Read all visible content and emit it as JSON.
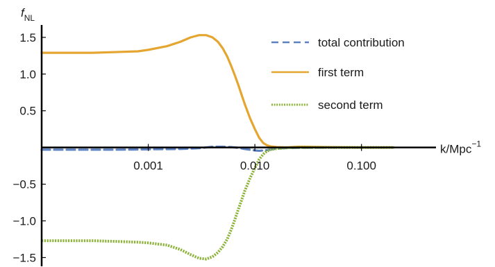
{
  "chart_data": {
    "type": "line",
    "title": "",
    "xlabel": "k/Mpc",
    "xlabel_exp": "−1",
    "ylabel": "f",
    "ylabel_sub": "NL",
    "x_scale": "log",
    "xlim": [
      0.0001,
      0.5
    ],
    "ylim": [
      -1.6,
      1.65
    ],
    "x_ticks": [
      {
        "value": 0.001,
        "label": "0.001"
      },
      {
        "value": 0.01,
        "label": "0.010"
      },
      {
        "value": 0.1,
        "label": "0.100"
      }
    ],
    "y_ticks": [
      {
        "value": 1.5,
        "label": "1.5"
      },
      {
        "value": 1.0,
        "label": "1.0"
      },
      {
        "value": 0.5,
        "label": "0.5"
      },
      {
        "value": -0.5,
        "label": "−0.5"
      },
      {
        "value": -1.0,
        "label": "−1.0"
      },
      {
        "value": -1.5,
        "label": "−1.5"
      }
    ],
    "grid": false,
    "legend_position": "top-right",
    "series": [
      {
        "name": "total contribution",
        "color": "#5b80c0",
        "style": "dashed",
        "x": [
          0.0001,
          0.0005,
          0.001,
          0.002,
          0.003,
          0.004,
          0.005,
          0.006,
          0.007,
          0.008,
          0.009,
          0.01,
          0.011,
          0.012,
          0.013,
          0.015,
          0.018,
          0.025,
          0.05,
          0.1,
          0.2
        ],
        "y": [
          -0.03,
          -0.03,
          -0.025,
          -0.02,
          -0.01,
          0.01,
          0.01,
          0.005,
          -0.005,
          -0.02,
          -0.03,
          -0.04,
          -0.045,
          -0.04,
          -0.035,
          -0.02,
          -0.01,
          -0.005,
          0.0,
          0.0,
          0.0
        ]
      },
      {
        "name": "first term",
        "color": "#e5a631",
        "style": "solid",
        "x": [
          0.0001,
          0.0003,
          0.0005,
          0.0008,
          0.001,
          0.0015,
          0.002,
          0.0025,
          0.003,
          0.0035,
          0.004,
          0.0045,
          0.005,
          0.0055,
          0.006,
          0.0065,
          0.007,
          0.0075,
          0.008,
          0.009,
          0.01,
          0.011,
          0.012,
          0.013,
          0.014,
          0.016,
          0.018,
          0.02,
          0.025,
          0.03,
          0.05,
          0.1,
          0.2
        ],
        "y": [
          1.29,
          1.29,
          1.3,
          1.31,
          1.33,
          1.38,
          1.44,
          1.5,
          1.53,
          1.53,
          1.5,
          1.44,
          1.35,
          1.24,
          1.11,
          0.98,
          0.85,
          0.72,
          0.6,
          0.4,
          0.25,
          0.13,
          0.06,
          0.03,
          0.015,
          0.005,
          0.003,
          0.002,
          0.01,
          0.01,
          0.005,
          0.0,
          0.0
        ]
      },
      {
        "name": "second term",
        "color": "#8db33a",
        "style": "dotted",
        "x": [
          0.0001,
          0.0003,
          0.0005,
          0.0008,
          0.001,
          0.0015,
          0.002,
          0.0025,
          0.003,
          0.0035,
          0.004,
          0.0045,
          0.005,
          0.0055,
          0.006,
          0.0065,
          0.007,
          0.0075,
          0.008,
          0.009,
          0.01,
          0.011,
          0.012,
          0.013,
          0.014,
          0.016,
          0.018,
          0.02,
          0.025,
          0.03,
          0.05,
          0.1,
          0.2
        ],
        "y": [
          -1.27,
          -1.27,
          -1.28,
          -1.29,
          -1.3,
          -1.33,
          -1.39,
          -1.46,
          -1.51,
          -1.52,
          -1.49,
          -1.43,
          -1.35,
          -1.25,
          -1.12,
          -0.98,
          -0.84,
          -0.72,
          -0.6,
          -0.42,
          -0.28,
          -0.16,
          -0.09,
          -0.05,
          -0.03,
          -0.015,
          -0.01,
          -0.005,
          0.0,
          0.0,
          0.0,
          0.0,
          0.0
        ]
      }
    ]
  }
}
